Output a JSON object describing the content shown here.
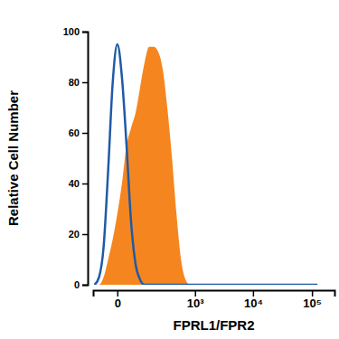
{
  "chart_data": {
    "type": "area",
    "x_label": "FPRL1/FPR2",
    "y_label": "Relative Cell Number",
    "log": "x",
    "x": [
      -73,
      -53,
      -36,
      -22,
      -10,
      0,
      10,
      22,
      36,
      53,
      73,
      97,
      125,
      159,
      200,
      249,
      306,
      378,
      459,
      558,
      676,
      818,
      1187,
      1710,
      3530,
      20960,
      123700
    ],
    "series": [
      {
        "type": "line",
        "color": "#1f5aa6",
        "values": [
          0,
          3,
          15,
          45,
          80,
          95,
          82,
          55,
          25,
          8,
          2,
          0,
          0,
          0,
          0,
          0,
          0,
          0,
          0,
          0,
          0,
          0,
          0,
          0,
          0,
          0,
          0
        ]
      },
      {
        "type": "area",
        "color": "#f5861f",
        "values": [
          0,
          0,
          3,
          10,
          18,
          28,
          40,
          55,
          62,
          68,
          78,
          88,
          94,
          94,
          92,
          85,
          70,
          50,
          28,
          10,
          2,
          0,
          0,
          0,
          0,
          0,
          0
        ]
      }
    ],
    "xlim": [
      -80,
      240000
    ],
    "xticks": [
      0,
      {
        "value": 1000,
        "label": "10³"
      },
      {
        "value": 10000,
        "label": "10⁴"
      },
      {
        "value": 100000,
        "label": "10⁵"
      }
    ],
    "ylim": [
      0,
      100
    ],
    "yticks": [
      0,
      20,
      40,
      60,
      80,
      100
    ]
  }
}
